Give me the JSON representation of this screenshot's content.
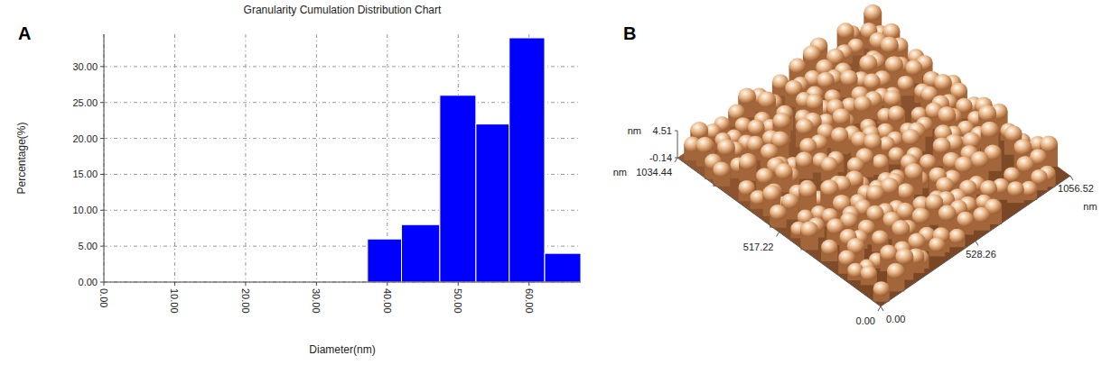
{
  "chart_data": [
    {
      "panel": "A",
      "type": "histogram",
      "title": "Granularity Cumulation Distribution  Chart",
      "x_label": "Diameter(nm)",
      "y_label": "Percentage(%)",
      "bins": [
        37.2,
        42.0,
        47.4,
        52.5,
        57.2,
        62.2,
        67.3
      ],
      "values": [
        6,
        8,
        26,
        22,
        34,
        4
      ],
      "color": "#0000ff",
      "xlim": [
        0,
        67.3
      ],
      "xticks": [
        {
          "value": 0,
          "label": "0.00"
        },
        {
          "value": 10,
          "label": "10.00"
        },
        {
          "value": 20,
          "label": "20.00"
        },
        {
          "value": 30,
          "label": "30.00"
        },
        {
          "value": 40,
          "label": "40.00"
        },
        {
          "value": 50,
          "label": "50.00"
        },
        {
          "value": 60,
          "label": "60.00"
        }
      ],
      "ylim": [
        0,
        34.5
      ],
      "yticks": [
        {
          "value": 0,
          "label": "0.00"
        },
        {
          "value": 5,
          "label": "5.00"
        },
        {
          "value": 10,
          "label": "10.00"
        },
        {
          "value": 15,
          "label": "15.00"
        },
        {
          "value": 20,
          "label": "20.00"
        },
        {
          "value": 25,
          "label": "25.00"
        },
        {
          "value": 30,
          "label": "30.00"
        }
      ],
      "grid": true
    },
    {
      "panel": "B",
      "type": "surface",
      "x_label": "nm",
      "y_label": "nm",
      "z_label": "nm",
      "xlim": [
        0,
        1056.52
      ],
      "xticks": [
        {
          "value": 0,
          "label": "0.00"
        },
        528.26,
        1056.52
      ],
      "ylim": [
        0,
        1034.44
      ],
      "yticks": [
        {
          "value": 0,
          "label": "0.00"
        },
        517.22,
        1034.44
      ],
      "zlim": [
        -0.14,
        4.51
      ],
      "zticks": [
        4.51,
        -0.14
      ]
    }
  ]
}
